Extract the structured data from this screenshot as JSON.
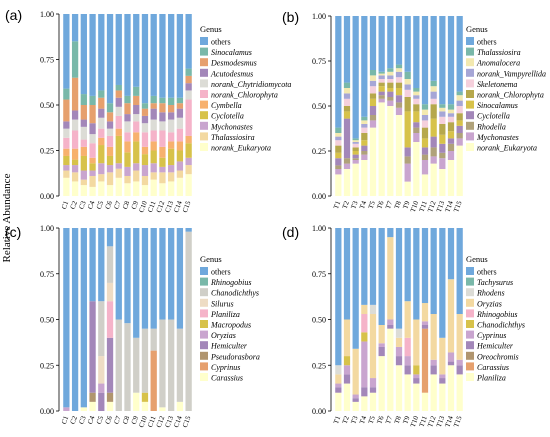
{
  "ylabel": "Relative Abundance",
  "legend_title": "Genus",
  "y_ticks": [
    "0.00",
    "0.25",
    "0.50",
    "0.75",
    "1.00"
  ],
  "panels": [
    {
      "id": "a",
      "label": "(a)"
    },
    {
      "id": "b",
      "label": "(b)"
    },
    {
      "id": "c",
      "label": "(c)"
    },
    {
      "id": "d",
      "label": "(d)"
    }
  ],
  "chart_data": [
    {
      "type": "bar",
      "stacked": true,
      "panel": "(a)",
      "ylabel": "Relative Abundance",
      "ylim": [
        0,
        1
      ],
      "yticks": [
        0,
        0.25,
        0.5,
        0.75,
        1.0
      ],
      "legend_title": "Genus",
      "legend_position": "right",
      "categories": [
        "C1",
        "C2",
        "C3",
        "C4",
        "C5",
        "C6",
        "C7",
        "C8",
        "C9",
        "C10",
        "C11",
        "C12",
        "C13",
        "C14",
        "C15"
      ],
      "series": [
        {
          "name": "norank_Eukaryota",
          "color": "#ffffcc",
          "values": [
            0.1,
            0.08,
            0.06,
            0.05,
            0.08,
            0.06,
            0.1,
            0.07,
            0.08,
            0.06,
            0.09,
            0.07,
            0.08,
            0.1,
            0.12
          ]
        },
        {
          "name": "Thalassiosira",
          "color": "#f3d9a1",
          "values": [
            0.04,
            0.05,
            0.03,
            0.06,
            0.04,
            0.07,
            0.05,
            0.04,
            0.06,
            0.05,
            0.04,
            0.06,
            0.05,
            0.04,
            0.05
          ]
        },
        {
          "name": "Mychonastes",
          "color": "#c9a5cf",
          "values": [
            0.03,
            0.04,
            0.05,
            0.03,
            0.06,
            0.04,
            0.03,
            0.05,
            0.04,
            0.06,
            0.05,
            0.03,
            0.04,
            0.05,
            0.04
          ]
        },
        {
          "name": "Cyclotella",
          "color": "#d7c24a",
          "values": [
            0.05,
            0.03,
            0.08,
            0.04,
            0.1,
            0.05,
            0.15,
            0.08,
            0.12,
            0.06,
            0.07,
            0.05,
            0.09,
            0.06,
            0.08
          ]
        },
        {
          "name": "Cymbella",
          "color": "#f7b16e",
          "values": [
            0.04,
            0.06,
            0.05,
            0.03,
            0.04,
            0.05,
            0.04,
            0.06,
            0.05,
            0.04,
            0.05,
            0.06,
            0.04,
            0.05,
            0.04
          ]
        },
        {
          "name": "norank_Chlorophyta",
          "color": "#f5b3c9",
          "values": [
            0.06,
            0.1,
            0.04,
            0.08,
            0.05,
            0.06,
            0.07,
            0.05,
            0.06,
            0.08,
            0.06,
            0.09,
            0.05,
            0.07,
            0.2
          ]
        },
        {
          "name": "norank_Chytridiomycota",
          "color": "#dcdcd6",
          "values": [
            0.05,
            0.06,
            0.07,
            0.05,
            0.06,
            0.04,
            0.05,
            0.06,
            0.04,
            0.05,
            0.06,
            0.05,
            0.07,
            0.06,
            0.05
          ]
        },
        {
          "name": "Acutodesmus",
          "color": "#a387b9",
          "values": [
            0.04,
            0.05,
            0.04,
            0.06,
            0.05,
            0.04,
            0.05,
            0.04,
            0.05,
            0.04,
            0.06,
            0.05,
            0.04,
            0.05,
            0.04
          ]
        },
        {
          "name": "Desmodesmus",
          "color": "#e6a06e",
          "values": [
            0.12,
            0.18,
            0.08,
            0.1,
            0.06,
            0.05,
            0.04,
            0.06,
            0.05,
            0.04,
            0.03,
            0.05,
            0.04,
            0.03,
            0.04
          ]
        },
        {
          "name": "Sinocalamus",
          "color": "#79b8a9",
          "values": [
            0.06,
            0.2,
            0.06,
            0.05,
            0.04,
            0.05,
            0.03,
            0.04,
            0.05,
            0.03,
            0.04,
            0.03,
            0.04,
            0.03,
            0.04
          ]
        },
        {
          "name": "others",
          "color": "#6fa8dc",
          "values": [
            0.41,
            0.15,
            0.44,
            0.45,
            0.42,
            0.49,
            0.39,
            0.45,
            0.4,
            0.49,
            0.45,
            0.46,
            0.46,
            0.46,
            0.3
          ]
        }
      ]
    },
    {
      "type": "bar",
      "stacked": true,
      "panel": "(b)",
      "ylabel": "Relative Abundance",
      "ylim": [
        0,
        1
      ],
      "yticks": [
        0,
        0.25,
        0.5,
        0.75,
        1.0
      ],
      "legend_title": "Genus",
      "legend_position": "right",
      "categories": [
        "T1",
        "T2",
        "T3",
        "T4",
        "T5",
        "T6",
        "T7",
        "T8",
        "T9",
        "T10",
        "T11",
        "T12",
        "T13",
        "T14",
        "T15"
      ],
      "series": [
        {
          "name": "norank_Eukaryota",
          "color": "#ffffcc",
          "values": [
            0.12,
            0.15,
            0.18,
            0.2,
            0.38,
            0.52,
            0.5,
            0.45,
            0.08,
            0.3,
            0.12,
            0.18,
            0.15,
            0.2,
            0.28
          ]
        },
        {
          "name": "Mychonastes",
          "color": "#c9a5cf",
          "values": [
            0.03,
            0.03,
            0.02,
            0.03,
            0.04,
            0.02,
            0.03,
            0.04,
            0.1,
            0.05,
            0.08,
            0.04,
            0.06,
            0.05,
            0.04
          ]
        },
        {
          "name": "Rhodella",
          "color": "#b0a27a",
          "values": [
            0.02,
            0.03,
            0.01,
            0.02,
            0.03,
            0.02,
            0.02,
            0.03,
            0.04,
            0.03,
            0.03,
            0.05,
            0.03,
            0.04,
            0.03
          ]
        },
        {
          "name": "Cyclotella",
          "color": "#a387b9",
          "values": [
            0.04,
            0.22,
            0.02,
            0.03,
            0.05,
            0.02,
            0.03,
            0.04,
            0.05,
            0.03,
            0.04,
            0.06,
            0.05,
            0.03,
            0.04
          ]
        },
        {
          "name": "Sinocalamus",
          "color": "#d7c24a",
          "values": [
            0.03,
            0.04,
            0.02,
            0.03,
            0.04,
            0.03,
            0.02,
            0.04,
            0.2,
            0.06,
            0.05,
            0.1,
            0.05,
            0.04,
            0.03
          ]
        },
        {
          "name": "norank_Chlorophyta",
          "color": "#b6a84c",
          "values": [
            0.04,
            0.03,
            0.02,
            0.04,
            0.03,
            0.02,
            0.03,
            0.03,
            0.08,
            0.04,
            0.06,
            0.08,
            0.06,
            0.05,
            0.04
          ]
        },
        {
          "name": "Skeletonema",
          "color": "#f5d0dc",
          "values": [
            0.03,
            0.04,
            0.02,
            0.03,
            0.04,
            0.02,
            0.02,
            0.03,
            0.04,
            0.03,
            0.04,
            0.03,
            0.04,
            0.03,
            0.04
          ]
        },
        {
          "name": "norank_Vampyrellida",
          "color": "#a6a6d6",
          "values": [
            0.02,
            0.03,
            0.01,
            0.02,
            0.03,
            0.02,
            0.02,
            0.03,
            0.03,
            0.02,
            0.03,
            0.04,
            0.03,
            0.02,
            0.03
          ]
        },
        {
          "name": "Anomalocera",
          "color": "#f3e9b0",
          "values": [
            0.02,
            0.03,
            0.01,
            0.02,
            0.03,
            0.01,
            0.02,
            0.02,
            0.03,
            0.02,
            0.03,
            0.03,
            0.02,
            0.02,
            0.03
          ]
        },
        {
          "name": "Thalassiosira",
          "color": "#79b8a9",
          "values": [
            0.03,
            0.03,
            0.01,
            0.02,
            0.03,
            0.01,
            0.02,
            0.02,
            0.04,
            0.02,
            0.03,
            0.03,
            0.02,
            0.03,
            0.02
          ]
        },
        {
          "name": "others",
          "color": "#6fa8dc",
          "values": [
            0.62,
            0.37,
            0.68,
            0.56,
            0.3,
            0.31,
            0.29,
            0.27,
            0.31,
            0.4,
            0.49,
            0.36,
            0.49,
            0.49,
            0.42
          ]
        }
      ]
    },
    {
      "type": "bar",
      "stacked": true,
      "panel": "(c)",
      "ylabel": "Relative Abundance",
      "ylim": [
        0,
        1
      ],
      "yticks": [
        0,
        0.25,
        0.5,
        0.75,
        1.0
      ],
      "legend_title": "Genus",
      "legend_position": "right",
      "categories": [
        "C1",
        "C2",
        "C3",
        "C4",
        "C5",
        "C6",
        "C7",
        "C8",
        "C9",
        "C10",
        "C11",
        "C12",
        "C13",
        "C14",
        "C15"
      ],
      "series": [
        {
          "name": "Carassius",
          "color": "#ffffcc",
          "values": [
            0.0,
            0.0,
            0.02,
            0.05,
            0.0,
            0.05,
            0.0,
            0.0,
            0.1,
            0.05,
            0.0,
            0.02,
            0.0,
            0.05,
            0.0
          ]
        },
        {
          "name": "Cyprinus",
          "color": "#e6a06e",
          "values": [
            0.0,
            0.0,
            0.0,
            0.0,
            0.0,
            0.0,
            0.0,
            0.0,
            0.0,
            0.0,
            0.33,
            0.0,
            0.0,
            0.0,
            0.0
          ]
        },
        {
          "name": "Pseudorasbora",
          "color": "#b0956e",
          "values": [
            0.0,
            0.0,
            0.0,
            0.05,
            0.0,
            0.05,
            0.0,
            0.0,
            0.0,
            0.0,
            0.0,
            0.0,
            0.0,
            0.0,
            0.0
          ]
        },
        {
          "name": "Hemiculter",
          "color": "#a387b9",
          "values": [
            0.0,
            0.0,
            0.0,
            0.5,
            0.1,
            0.3,
            0.0,
            0.0,
            0.0,
            0.0,
            0.0,
            0.0,
            0.0,
            0.0,
            0.0
          ]
        },
        {
          "name": "Oryzias",
          "color": "#c9a5cf",
          "values": [
            0.02,
            0.0,
            0.0,
            0.0,
            0.05,
            0.0,
            0.0,
            0.0,
            0.0,
            0.0,
            0.0,
            0.0,
            0.0,
            0.0,
            0.0
          ]
        },
        {
          "name": "Macropodus",
          "color": "#d7c24a",
          "values": [
            0.0,
            0.0,
            0.0,
            0.0,
            0.0,
            0.0,
            0.0,
            0.0,
            0.0,
            0.05,
            0.0,
            0.0,
            0.0,
            0.0,
            0.0
          ]
        },
        {
          "name": "Planiliza",
          "color": "#f5b3c9",
          "values": [
            0.0,
            0.0,
            0.0,
            0.0,
            0.0,
            0.2,
            0.0,
            0.0,
            0.0,
            0.0,
            0.0,
            0.0,
            0.0,
            0.0,
            0.0
          ]
        },
        {
          "name": "Silurus",
          "color": "#eedcc4",
          "values": [
            0.0,
            0.0,
            0.0,
            0.0,
            0.15,
            0.1,
            0.0,
            0.0,
            0.0,
            0.0,
            0.0,
            0.0,
            0.0,
            0.0,
            0.0
          ]
        },
        {
          "name": "Chanodichthys",
          "color": "#d0cfc8",
          "values": [
            0.0,
            0.0,
            0.0,
            0.0,
            0.3,
            0.2,
            0.5,
            0.48,
            0.3,
            0.35,
            0.12,
            0.48,
            0.5,
            0.4,
            0.98
          ]
        },
        {
          "name": "Rhinogobius",
          "color": "#79b8a9",
          "values": [
            0.0,
            0.0,
            0.0,
            0.0,
            0.0,
            0.0,
            0.0,
            0.0,
            0.0,
            0.0,
            0.0,
            0.0,
            0.0,
            0.0,
            0.0
          ]
        },
        {
          "name": "others",
          "color": "#6fa8dc",
          "values": [
            0.98,
            1.0,
            0.98,
            0.4,
            0.4,
            0.1,
            0.5,
            0.52,
            0.6,
            0.55,
            0.55,
            0.5,
            0.5,
            0.55,
            0.02
          ]
        }
      ]
    },
    {
      "type": "bar",
      "stacked": true,
      "panel": "(d)",
      "ylabel": "Relative Abundance",
      "ylim": [
        0,
        1
      ],
      "yticks": [
        0,
        0.25,
        0.5,
        0.75,
        1.0
      ],
      "legend_title": "Genus",
      "legend_position": "right",
      "categories": [
        "T1",
        "T2",
        "T3",
        "T4",
        "T5",
        "T6",
        "T7",
        "T8",
        "T9",
        "T10",
        "T11",
        "T12",
        "T13",
        "T14",
        "T15"
      ],
      "series": [
        {
          "name": "Planiliza",
          "color": "#ffffcc",
          "values": [
            0.1,
            0.15,
            0.05,
            0.08,
            0.1,
            0.3,
            0.45,
            0.25,
            0.2,
            0.15,
            0.1,
            0.2,
            0.15,
            0.25,
            0.2
          ]
        },
        {
          "name": "Carassius",
          "color": "#e6a06e",
          "values": [
            0.0,
            0.0,
            0.0,
            0.0,
            0.0,
            0.0,
            0.0,
            0.0,
            0.0,
            0.0,
            0.35,
            0.0,
            0.0,
            0.0,
            0.0
          ]
        },
        {
          "name": "Oreochromis",
          "color": "#b0956e",
          "values": [
            0.0,
            0.0,
            0.0,
            0.0,
            0.0,
            0.0,
            0.0,
            0.0,
            0.0,
            0.0,
            0.0,
            0.0,
            0.0,
            0.0,
            0.0
          ]
        },
        {
          "name": "Hemiculter",
          "color": "#a387b9",
          "values": [
            0.03,
            0.05,
            0.02,
            0.05,
            0.03,
            0.05,
            0.02,
            0.05,
            0.05,
            0.03,
            0.02,
            0.05,
            0.03,
            0.02,
            0.05
          ]
        },
        {
          "name": "Cyprinus",
          "color": "#c9a5cf",
          "values": [
            0.02,
            0.05,
            0.02,
            0.25,
            0.05,
            0.02,
            0.03,
            0.05,
            0.05,
            0.02,
            0.02,
            0.03,
            0.02,
            0.05,
            0.03
          ]
        },
        {
          "name": "Chanodichthys",
          "color": "#d7c24a",
          "values": [
            0.0,
            0.05,
            0.0,
            0.05,
            0.0,
            0.0,
            0.0,
            0.0,
            0.0,
            0.05,
            0.0,
            0.0,
            0.0,
            0.0,
            0.0
          ]
        },
        {
          "name": "Rhinogobius",
          "color": "#f5b3c9",
          "values": [
            0.0,
            0.0,
            0.0,
            0.1,
            0.0,
            0.0,
            0.0,
            0.0,
            0.1,
            0.0,
            0.0,
            0.0,
            0.0,
            0.0,
            0.0
          ]
        },
        {
          "name": "Oryzias",
          "color": "#f3d9a1",
          "values": [
            0.05,
            0.2,
            0.25,
            0.05,
            0.35,
            0.1,
            0.45,
            0.05,
            0.2,
            0.25,
            0.1,
            0.25,
            0.2,
            0.4,
            0.25
          ]
        },
        {
          "name": "Rhodens",
          "color": "#dcdcd6",
          "values": [
            0.05,
            0.0,
            0.0,
            0.0,
            0.05,
            0.0,
            0.0,
            0.05,
            0.0,
            0.0,
            0.0,
            0.0,
            0.0,
            0.0,
            0.0
          ]
        },
        {
          "name": "Tachysurus",
          "color": "#79b8a9",
          "values": [
            0.0,
            0.0,
            0.0,
            0.0,
            0.0,
            0.0,
            0.0,
            0.0,
            0.0,
            0.0,
            0.0,
            0.0,
            0.0,
            0.0,
            0.0
          ]
        },
        {
          "name": "others",
          "color": "#6fa8dc",
          "values": [
            0.75,
            0.5,
            0.66,
            0.42,
            0.42,
            0.53,
            0.05,
            0.55,
            0.4,
            0.5,
            0.41,
            0.47,
            0.6,
            0.28,
            0.47
          ]
        }
      ]
    }
  ]
}
